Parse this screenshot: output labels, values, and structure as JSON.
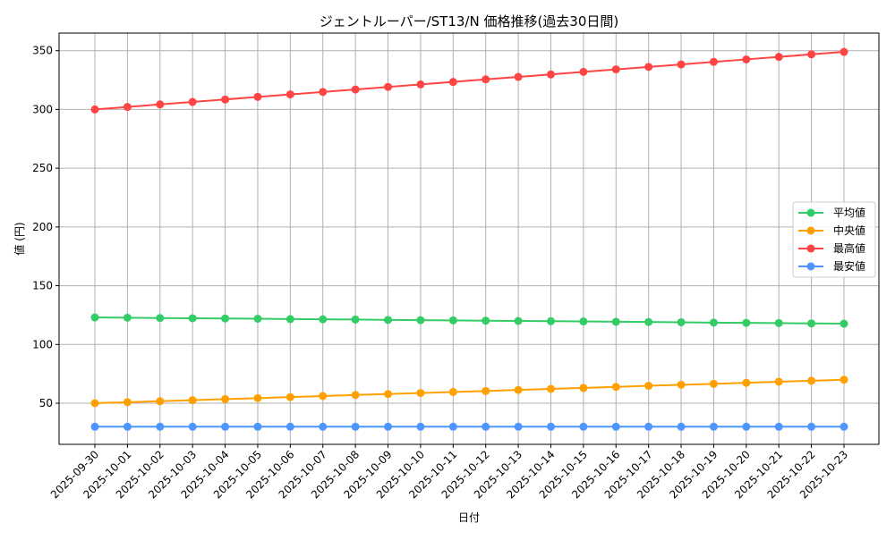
{
  "chart_data": {
    "type": "line",
    "title": "ジェントルーパー/ST13/N 価格推移(過去30日間)",
    "xlabel": "日付",
    "ylabel": "値 (円)",
    "ylim": [
      15,
      365
    ],
    "yticks": [
      50,
      100,
      150,
      200,
      250,
      300,
      350
    ],
    "grid": true,
    "legend_position": "center-right",
    "x": [
      "2025-09-30",
      "2025-10-01",
      "2025-10-02",
      "2025-10-03",
      "2025-10-04",
      "2025-10-05",
      "2025-10-06",
      "2025-10-07",
      "2025-10-08",
      "2025-10-09",
      "2025-10-10",
      "2025-10-11",
      "2025-10-12",
      "2025-10-13",
      "2025-10-14",
      "2025-10-15",
      "2025-10-16",
      "2025-10-17",
      "2025-10-18",
      "2025-10-19",
      "2025-10-20",
      "2025-10-21",
      "2025-10-22",
      "2025-10-23"
    ],
    "series": [
      {
        "name": "平均値",
        "color": "#33cc66",
        "values": [
          123.0,
          122.8,
          122.5,
          122.3,
          122.1,
          121.9,
          121.6,
          121.4,
          121.2,
          120.9,
          120.7,
          120.5,
          120.2,
          120.0,
          119.8,
          119.6,
          119.3,
          119.1,
          118.9,
          118.6,
          118.4,
          118.2,
          117.9,
          117.7
        ]
      },
      {
        "name": "中央値",
        "color": "#ffa000",
        "values": [
          50.0,
          50.9,
          51.7,
          52.6,
          53.5,
          54.3,
          55.2,
          56.1,
          57.0,
          57.8,
          58.7,
          59.6,
          60.4,
          61.3,
          62.2,
          63.0,
          63.9,
          64.8,
          65.7,
          66.5,
          67.4,
          68.3,
          69.1,
          70.0
        ]
      },
      {
        "name": "最高値",
        "color": "#ff4444",
        "values": [
          300.0,
          302.1,
          304.3,
          306.4,
          308.5,
          310.7,
          312.8,
          314.9,
          317.0,
          319.2,
          321.3,
          323.4,
          325.6,
          327.7,
          329.8,
          332.0,
          334.1,
          336.2,
          338.3,
          340.5,
          342.6,
          344.7,
          346.9,
          349.0
        ]
      },
      {
        "name": "最安値",
        "color": "#4d96ff",
        "values": [
          30,
          30,
          30,
          30,
          30,
          30,
          30,
          30,
          30,
          30,
          30,
          30,
          30,
          30,
          30,
          30,
          30,
          30,
          30,
          30,
          30,
          30,
          30,
          30
        ]
      }
    ]
  }
}
